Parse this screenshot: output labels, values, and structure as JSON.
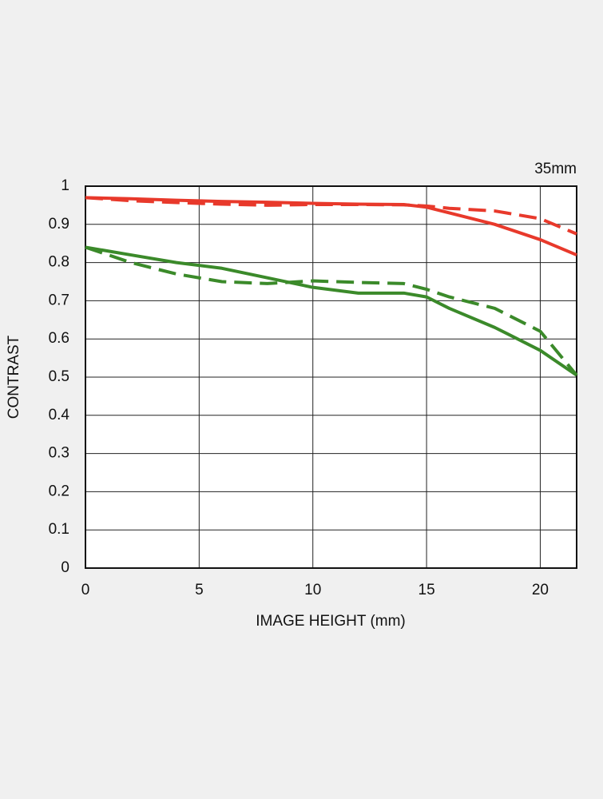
{
  "chart_data": {
    "type": "line",
    "annotation": "35mm",
    "xlabel": "IMAGE HEIGHT (mm)",
    "ylabel": "CONTRAST",
    "x": [
      0,
      2,
      4,
      6,
      8,
      10,
      12,
      14,
      15,
      16,
      18,
      20,
      21.6
    ],
    "series": [
      {
        "color": "#e8392b",
        "dashed": false,
        "values": [
          0.97,
          0.967,
          0.963,
          0.96,
          0.958,
          0.955,
          0.953,
          0.952,
          0.945,
          0.93,
          0.9,
          0.86,
          0.82
        ]
      },
      {
        "color": "#e8392b",
        "dashed": true,
        "values": [
          0.97,
          0.962,
          0.957,
          0.953,
          0.95,
          0.952,
          0.952,
          0.951,
          0.948,
          0.942,
          0.935,
          0.915,
          0.875
        ]
      },
      {
        "color": "#3b8a2a",
        "dashed": false,
        "values": [
          0.84,
          0.82,
          0.8,
          0.785,
          0.76,
          0.735,
          0.72,
          0.72,
          0.71,
          0.68,
          0.63,
          0.57,
          0.505
        ]
      },
      {
        "color": "#3b8a2a",
        "dashed": true,
        "values": [
          0.84,
          0.8,
          0.77,
          0.75,
          0.745,
          0.752,
          0.748,
          0.745,
          0.73,
          0.71,
          0.68,
          0.62,
          0.505
        ]
      }
    ],
    "xlim": [
      0,
      21.6
    ],
    "xticks": [
      0,
      5,
      10,
      15,
      20
    ],
    "ylim": [
      0,
      1
    ],
    "yticks": [
      0,
      0.1,
      0.2,
      0.3,
      0.4,
      0.5,
      0.6,
      0.7,
      0.8,
      0.9,
      1
    ],
    "grid": true
  }
}
